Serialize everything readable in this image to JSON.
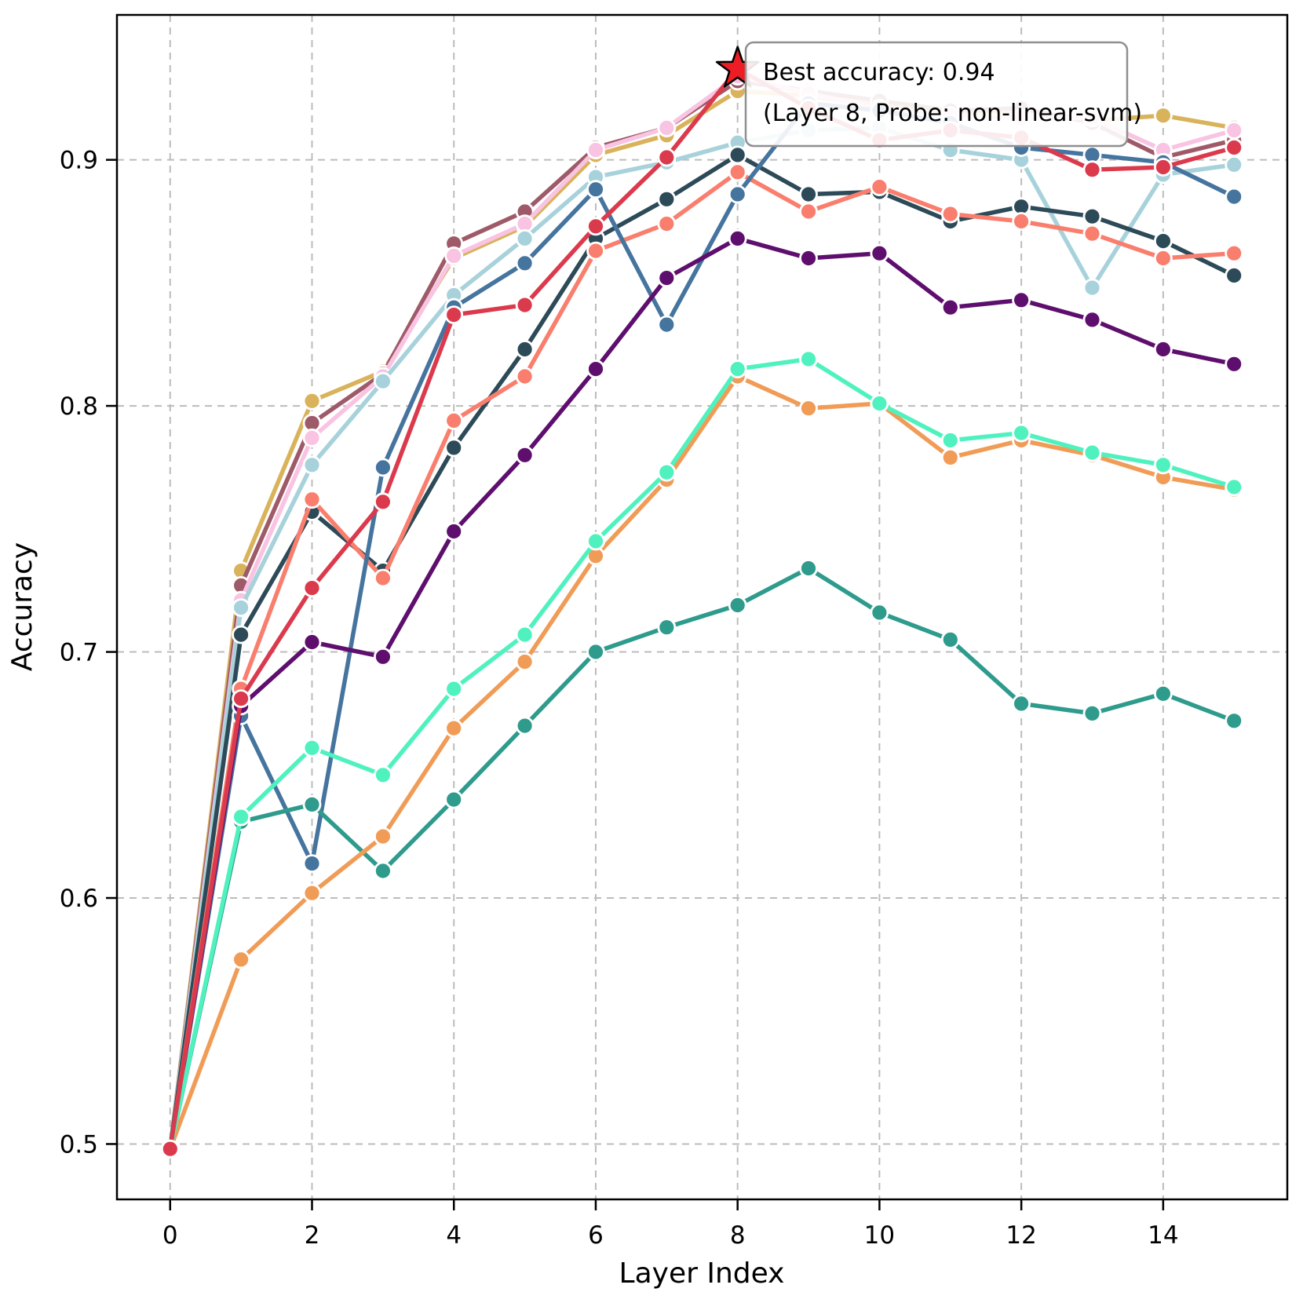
{
  "page": {
    "title": ""
  },
  "colors": {
    "background": "#ffffff",
    "grid": "#bcbcbc",
    "axis": "#000000",
    "text": "#000000",
    "annotation_bg": "#ffffff",
    "annotation_border": "#8f8f8f",
    "marker_edge": "#ffffff"
  },
  "chart_data": {
    "type": "line",
    "title": "",
    "xlabel": "Layer Index",
    "ylabel": "Accuracy",
    "x": [
      0,
      1,
      2,
      3,
      4,
      5,
      6,
      7,
      8,
      9,
      10,
      11,
      12,
      13,
      14,
      15
    ],
    "xticks": [
      0,
      2,
      4,
      6,
      8,
      10,
      12,
      14
    ],
    "yticks": [
      0.5,
      0.6,
      0.7,
      0.8,
      0.9
    ],
    "xlim": [
      -0.75,
      15.75
    ],
    "ylim": [
      0.4775,
      0.9589
    ],
    "grid": true,
    "grid_style": "dashed",
    "legend": "none",
    "marker": "circle",
    "series": [
      {
        "name": "gold",
        "color": "#D9B35B",
        "values": [
          0.498,
          0.733,
          0.802,
          0.814,
          0.86,
          0.873,
          0.902,
          0.91,
          0.928,
          0.926,
          0.922,
          0.919,
          0.92,
          0.916,
          0.918,
          0.913
        ]
      },
      {
        "name": "maroon",
        "color": "#9E5A68",
        "values": [
          0.498,
          0.727,
          0.793,
          0.813,
          0.866,
          0.879,
          0.905,
          0.913,
          0.932,
          0.928,
          0.924,
          0.92,
          0.921,
          0.915,
          0.901,
          0.908
        ]
      },
      {
        "name": "pink",
        "color": "#F9C3E2",
        "values": [
          0.498,
          0.721,
          0.787,
          0.812,
          0.861,
          0.874,
          0.904,
          0.913,
          0.934,
          0.927,
          0.921,
          0.918,
          0.917,
          0.917,
          0.904,
          0.912
        ]
      },
      {
        "name": "pale-blue",
        "color": "#A8D2DB",
        "values": [
          0.498,
          0.718,
          0.776,
          0.81,
          0.845,
          0.868,
          0.893,
          0.899,
          0.907,
          0.912,
          0.913,
          0.904,
          0.9,
          0.848,
          0.894,
          0.898
        ]
      },
      {
        "name": "dark-slate",
        "color": "#2C4A57",
        "values": [
          0.498,
          0.707,
          0.757,
          0.733,
          0.783,
          0.823,
          0.868,
          0.884,
          0.902,
          0.886,
          0.887,
          0.875,
          0.881,
          0.877,
          0.867,
          0.853
        ]
      },
      {
        "name": "salmon",
        "color": "#F97E6D",
        "values": [
          0.498,
          0.685,
          0.762,
          0.73,
          0.794,
          0.812,
          0.863,
          0.874,
          0.895,
          0.879,
          0.889,
          0.878,
          0.875,
          0.87,
          0.86,
          0.862
        ]
      },
      {
        "name": "steel-blue",
        "color": "#45749E",
        "values": [
          0.498,
          0.674,
          0.614,
          0.775,
          0.84,
          0.858,
          0.888,
          0.833,
          0.886,
          0.923,
          0.92,
          0.915,
          0.905,
          0.902,
          0.899,
          0.885
        ]
      },
      {
        "name": "purple",
        "color": "#5E0F6E",
        "values": [
          0.498,
          0.678,
          0.704,
          0.698,
          0.749,
          0.78,
          0.815,
          0.852,
          0.868,
          0.86,
          0.862,
          0.84,
          0.843,
          0.835,
          0.823,
          0.817
        ]
      },
      {
        "name": "teal",
        "color": "#2E9B8D",
        "values": [
          0.498,
          0.631,
          0.638,
          0.611,
          0.64,
          0.67,
          0.7,
          0.71,
          0.719,
          0.734,
          0.716,
          0.705,
          0.679,
          0.675,
          0.683,
          0.672
        ]
      },
      {
        "name": "orange",
        "color": "#F09C57",
        "values": [
          0.498,
          0.575,
          0.602,
          0.625,
          0.669,
          0.696,
          0.739,
          0.77,
          0.812,
          0.799,
          0.801,
          0.779,
          0.786,
          0.78,
          0.771,
          0.766
        ]
      },
      {
        "name": "aquamarine",
        "color": "#4FF2BE",
        "values": [
          0.498,
          0.633,
          0.661,
          0.65,
          0.685,
          0.707,
          0.745,
          0.773,
          0.815,
          0.819,
          0.801,
          0.786,
          0.789,
          0.781,
          0.776,
          0.767
        ]
      },
      {
        "name": "non-linear-svm",
        "color": "#DB3A4D",
        "values": [
          0.498,
          0.681,
          0.726,
          0.761,
          0.837,
          0.841,
          0.873,
          0.901,
          0.937,
          0.921,
          0.908,
          0.912,
          0.909,
          0.896,
          0.897,
          0.905
        ]
      }
    ],
    "best_point": {
      "layer": 8,
      "accuracy": 0.937,
      "accuracy_label": "0.94",
      "series": "non-linear-svm",
      "marker": "star",
      "color": "#EE1C25",
      "edge_color": "#000000"
    },
    "annotation": {
      "line1": "Best accuracy: 0.94",
      "line2": "(Layer 8, Probe: non-linear-svm)"
    }
  }
}
